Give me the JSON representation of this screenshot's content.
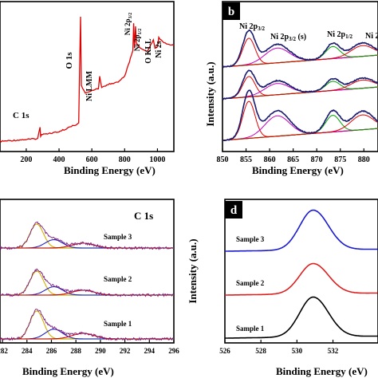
{
  "chart_data": [
    {
      "panel": "a",
      "type": "line",
      "xlabel": "Binding Energy (eV)",
      "ylabel": "",
      "xlim": [
        40,
        1100
      ],
      "xticks": [
        "200",
        "400",
        "600",
        "800",
        "1000"
      ],
      "annotations": [
        "C 1s",
        "O 1s",
        "Ni LMM",
        "Ni 2p3/2",
        "Ni 2p1/2",
        "O KLL",
        "Ni 2s"
      ],
      "series": [
        {
          "color": "#e00000",
          "x": [
            40,
            270,
            284,
            288,
            300,
            400,
            520,
            531,
            536,
            560,
            640,
            648,
            660,
            700,
            760,
            800,
            850,
            855,
            860,
            866,
            872,
            880,
            900,
            940,
            975,
            985,
            1000,
            1008,
            1040,
            1100
          ],
          "y": [
            0.05,
            0.07,
            0.15,
            0.09,
            0.1,
            0.12,
            0.18,
            0.95,
            0.45,
            0.4,
            0.43,
            0.52,
            0.44,
            0.46,
            0.48,
            0.52,
            0.7,
            0.9,
            0.72,
            0.88,
            0.76,
            0.74,
            0.72,
            0.7,
            0.78,
            0.72,
            0.73,
            0.8,
            0.76,
            0.74
          ]
        }
      ]
    },
    {
      "panel": "b",
      "type": "line",
      "xlabel": "Binding Energy (eV)",
      "ylabel": "Intensity (a.u.)",
      "xlim": [
        850,
        883
      ],
      "xticks": [
        "850",
        "855",
        "860",
        "865",
        "870",
        "875",
        "880"
      ],
      "annotations": [
        "Ni 2p3/2",
        "Ni 2p3/2 (s)",
        "Ni 2p1/2",
        "Ni 2s"
      ],
      "series": [
        {
          "name": "Sample 3",
          "offset": 2,
          "color": "#1a1a6e"
        },
        {
          "name": "Sample 2",
          "offset": 1,
          "color": "#1a1a6e"
        },
        {
          "name": "Sample 1",
          "offset": 0,
          "color": "#1a1a6e"
        }
      ],
      "peaks_eV": [
        855.6,
        861.6,
        873.4,
        879.7
      ],
      "peak_heights": [
        1.0,
        0.55,
        0.45,
        0.4
      ]
    },
    {
      "panel": "c",
      "type": "line",
      "title": "C 1s",
      "xlabel": "Binding Energy (eV)",
      "xlim": [
        281.8,
        296
      ],
      "xticks": [
        "282",
        "284",
        "286",
        "288",
        "290",
        "292",
        "294",
        "296"
      ],
      "series": [
        {
          "name": "Sample 3",
          "offset": 2
        },
        {
          "name": "Sample 2",
          "offset": 1
        },
        {
          "name": "Sample 1",
          "offset": 0
        }
      ],
      "peaks_eV": [
        284.8,
        286.2,
        288.6
      ],
      "peak_heights": [
        1.0,
        0.35,
        0.2
      ]
    },
    {
      "panel": "d",
      "type": "line",
      "xlabel": "Binding Energy (eV)",
      "ylabel": "Intensity (a.u.)",
      "xlim": [
        526,
        534.5
      ],
      "xticks": [
        "526",
        "528",
        "530",
        "532"
      ],
      "series": [
        {
          "name": "Sample 3",
          "offset": 2,
          "color": "#1a1ad0",
          "center": 530.9
        },
        {
          "name": "Sample 2",
          "offset": 1,
          "color": "#dd2020",
          "center": 530.9
        },
        {
          "name": "Sample 1",
          "offset": 0,
          "color": "#000000",
          "center": 530.9
        }
      ]
    }
  ],
  "labels": {
    "a_xlabel": "Binding Energy (eV)",
    "b_xlabel": "Binding Energy (eV)",
    "b_ylabel": "Intensity (a.u.)",
    "b_letter": "b",
    "c_title": "C 1s",
    "c_xlabel": "Binding Energy (eV)",
    "d_letter": "d",
    "d_xlabel": "Binding Energy (eV)",
    "d_ylabel": "Intensity (a.u.)",
    "s3": "Sample 3",
    "s2": "Sample 2",
    "s1": "Sample 1"
  }
}
